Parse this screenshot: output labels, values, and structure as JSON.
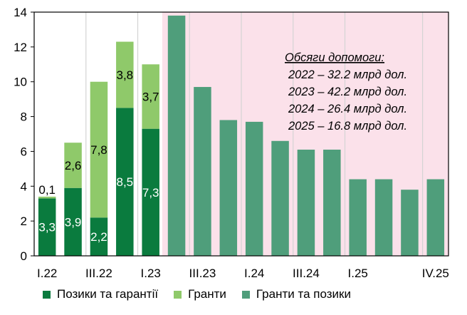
{
  "chart_data": {
    "type": "bar",
    "stacked": true,
    "categories": [
      "I.22",
      "II.22",
      "III.22",
      "IV.22",
      "I.23",
      "II.23",
      "III.23",
      "IV.23",
      "I.24",
      "II.24",
      "III.24",
      "IV.24",
      "I.25",
      "II.25",
      "III.25",
      "IV.25"
    ],
    "x_tick_labels": [
      "I.22",
      "III.22",
      "I.23",
      "III.23",
      "I.24",
      "III.24",
      "I.25",
      "IV.25"
    ],
    "x_tick_categories": [
      "I.22",
      "III.22",
      "I.23",
      "III.23",
      "I.24",
      "III.24",
      "I.25",
      "IV.25"
    ],
    "ylim": [
      0,
      14
    ],
    "yticks": [
      0,
      2,
      4,
      6,
      8,
      10,
      12,
      14
    ],
    "series": [
      {
        "name": "Позики та гарантії",
        "color": "#0a7b3e",
        "values": [
          3.3,
          3.9,
          2.2,
          8.5,
          7.3,
          null,
          null,
          null,
          null,
          null,
          null,
          null,
          null,
          null,
          null,
          null
        ],
        "labels": [
          "3,3",
          "3,9",
          "2,2",
          "8,5",
          "7,3",
          null,
          null,
          null,
          null,
          null,
          null,
          null,
          null,
          null,
          null,
          null
        ]
      },
      {
        "name": "Гранти",
        "color": "#8fc96a",
        "values": [
          0.1,
          2.6,
          7.8,
          3.8,
          3.7,
          null,
          null,
          null,
          null,
          null,
          null,
          null,
          null,
          null,
          null,
          null
        ],
        "labels": [
          "0,1",
          "2,6",
          "7,8",
          "3,8",
          "3,7",
          null,
          null,
          null,
          null,
          null,
          null,
          null,
          null,
          null,
          null,
          null
        ]
      },
      {
        "name": "Гранти та позики",
        "color": "#4f9e7b",
        "values": [
          null,
          null,
          null,
          null,
          null,
          13.8,
          9.7,
          7.8,
          7.7,
          6.6,
          6.1,
          6.1,
          4.4,
          4.4,
          3.8,
          4.4
        ],
        "labels": []
      }
    ],
    "shaded_region": {
      "from": "II.23",
      "to": "IV.25",
      "color": "#fbe1ea"
    },
    "grid": {
      "vertical": true,
      "horizontal": false
    },
    "legend_position": "bottom"
  },
  "annotation": {
    "title": "Обсяги допомоги:",
    "lines": [
      "2022 – 32.2 млрд дол.",
      "2023 – 42.2 млрд дол.",
      "2024 – 26.4 млрд дол.",
      "2025 – 16.8 млрд дол."
    ]
  },
  "legend": {
    "items": [
      {
        "label": "Позики та гарантії",
        "color": "#0a7b3e"
      },
      {
        "label": "Гранти",
        "color": "#8fc96a"
      },
      {
        "label": "Гранти та позики",
        "color": "#4f9e7b"
      }
    ]
  }
}
